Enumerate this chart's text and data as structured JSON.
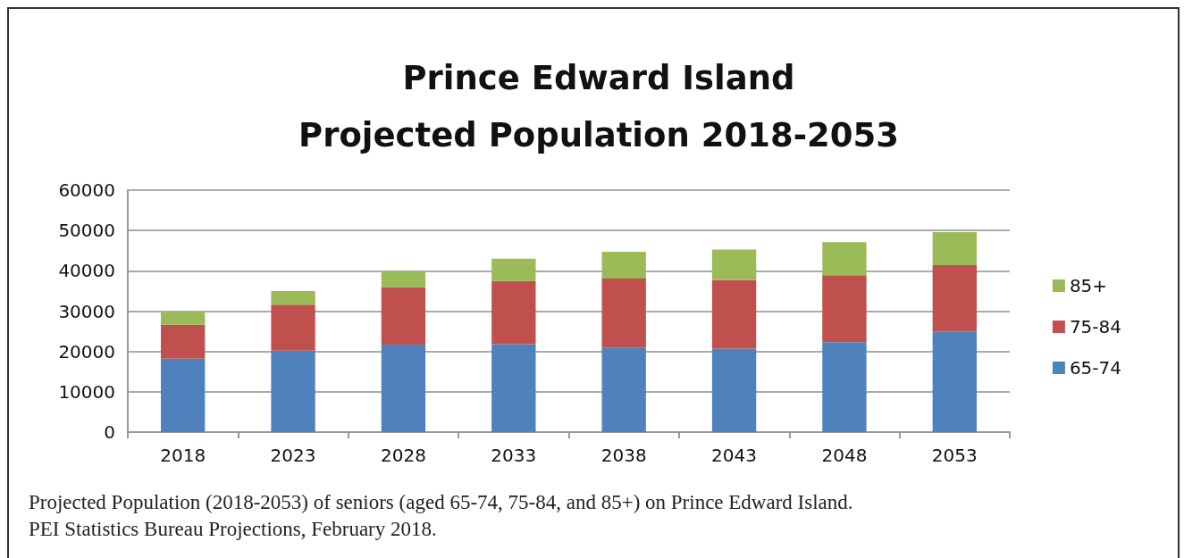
{
  "chart_data": {
    "type": "bar",
    "title": "Prince Edward Island\nProjected Population 2018-2053",
    "categories": [
      "2018",
      "2023",
      "2028",
      "2033",
      "2038",
      "2043",
      "2048",
      "2053"
    ],
    "series": [
      {
        "name": "65-74",
        "color": "#4f81bd",
        "values": [
          18200,
          20200,
          21700,
          21800,
          21000,
          20700,
          22300,
          24900
        ]
      },
      {
        "name": "75-84",
        "color": "#c0504d",
        "values": [
          8400,
          11400,
          14200,
          15700,
          17100,
          17000,
          16600,
          16500
        ]
      },
      {
        "name": "85+",
        "color": "#9bbb59",
        "values": [
          3200,
          3400,
          4000,
          5500,
          6600,
          7600,
          8200,
          8200
        ]
      }
    ],
    "stacked": true,
    "ylim": [
      0,
      60000
    ],
    "yticks": [
      0,
      10000,
      20000,
      30000,
      40000,
      50000,
      60000
    ],
    "grid": "y",
    "legend": "right",
    "annotations": [
      "Projected Population (2018-2053) of seniors (aged 65-74, 75-84, and 85+) on Prince Edward Island.",
      "PEI Statistics Bureau Projections, February 2018."
    ]
  }
}
